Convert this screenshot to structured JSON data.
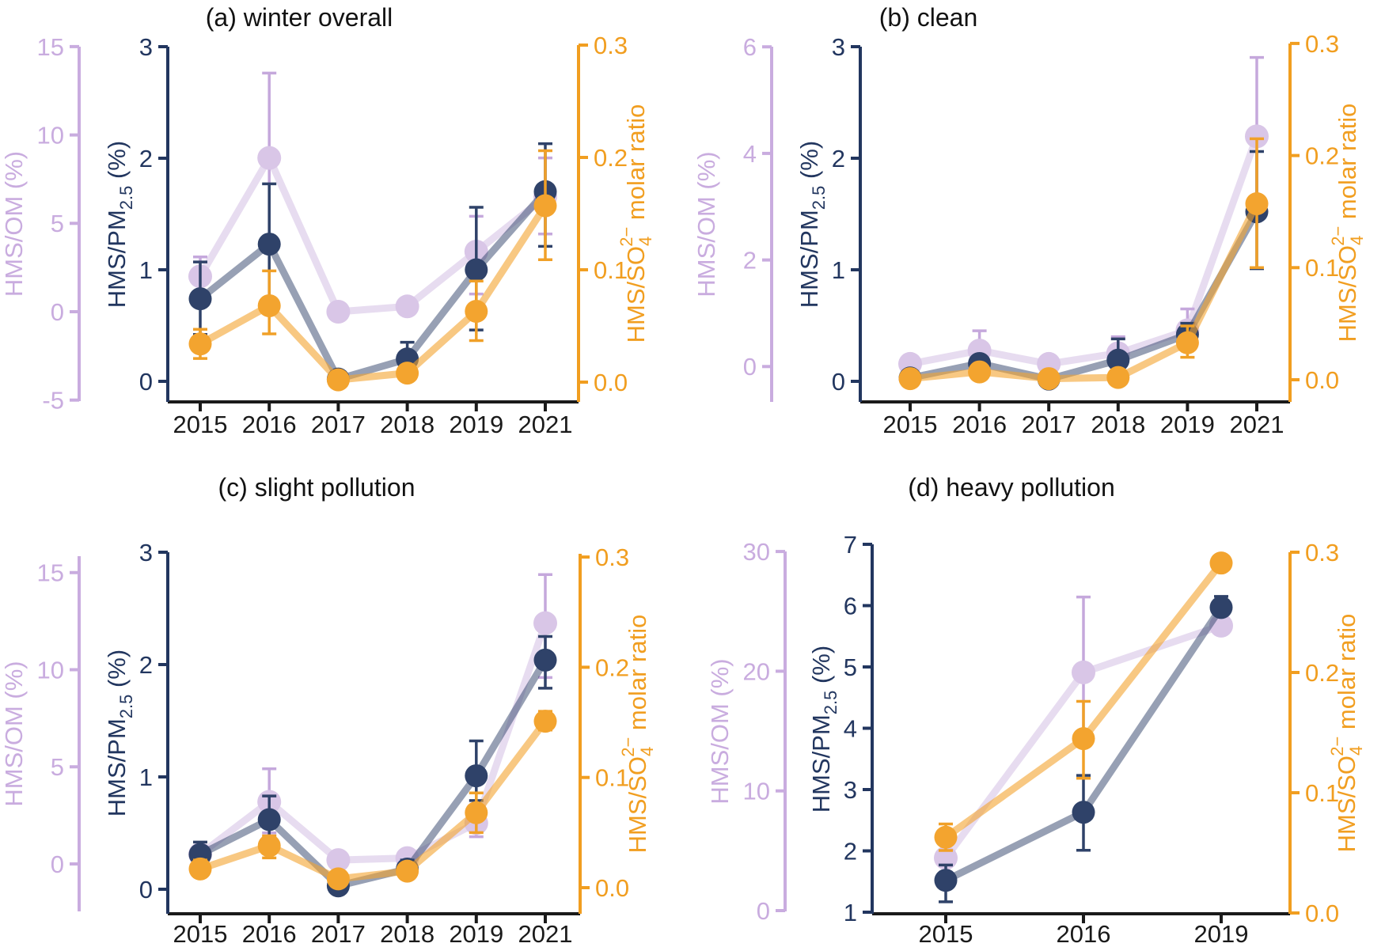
{
  "colors": {
    "om_marker": "#D9C6E7",
    "om_line": "rgba(217,198,231,0.62)",
    "om_error": "#C5A8DC",
    "om_axis": "#C9ACDF",
    "pm_marker": "#2F4269",
    "pm_line": "rgba(47,66,105,0.5)",
    "pm_error": "#2F4269",
    "pm_axis": "#22365F",
    "so4_marker": "#F3A42F",
    "so4_line": "rgba(243,164,47,0.6)",
    "so4_error": "#F0A028",
    "so4_axis": "#F19E20",
    "x_axis": "#1A1A1A",
    "title": "#121212"
  },
  "chart_data": [
    {
      "id": "a",
      "type": "line",
      "title": "(a) winter overall",
      "x": [
        "2015",
        "2016",
        "2017",
        "2018",
        "2019",
        "2021"
      ],
      "axes": {
        "om": {
          "label": "HMS/OM (%)",
          "label_parts": [
            {
              "t": "HMS/OM (%)"
            }
          ],
          "ticks": [
            "15",
            "10",
            "5",
            "0",
            "-5"
          ],
          "range": [
            -5,
            15
          ],
          "side": "left-outer"
        },
        "pm": {
          "label": "HMS/PM2.5 (%)",
          "label_parts": [
            {
              "t": "HMS/PM"
            },
            {
              "t": "2.5",
              "script": "sub"
            },
            {
              "t": " (%)"
            }
          ],
          "ticks": [
            "3",
            "2",
            "1",
            "0"
          ],
          "range": [
            0,
            3
          ],
          "side": "left-inner"
        },
        "so4": {
          "label": "HMS/SO4(2-) molar ratio",
          "label_parts": [
            {
              "t": "HMS/SO"
            },
            {
              "t": "4",
              "script": "sub"
            },
            {
              "t": "2−",
              "script": "sup-stack"
            },
            {
              "t": " molar ratio"
            }
          ],
          "ticks": [
            "0.3",
            "0.2",
            "0.1",
            "0.0"
          ],
          "range": [
            0,
            0.3
          ],
          "side": "right"
        }
      },
      "series": {
        "om": {
          "name": "HMS/OM (%)",
          "values": [
            2.0,
            8.7,
            0.0,
            0.3,
            3.4,
            6.5
          ],
          "err_lo": [
            0.9,
            3.9,
            0.0,
            -0.1,
            1.0,
            4.4
          ],
          "err_hi": [
            3.1,
            13.5,
            0.0,
            0.7,
            5.4,
            8.7
          ]
        },
        "pm": {
          "name": "HMS/PM2.5 (%)",
          "values": [
            0.74,
            1.23,
            0.02,
            0.2,
            1.0,
            1.7
          ],
          "err_lo": [
            0.42,
            0.7,
            0.02,
            0.05,
            0.46,
            1.21
          ],
          "err_hi": [
            1.07,
            1.77,
            0.02,
            0.35,
            1.56,
            2.13
          ]
        },
        "so4": {
          "name": "HMS/SO4(2-) molar ratio",
          "values": [
            0.034,
            0.068,
            0.002,
            0.008,
            0.063,
            0.157
          ],
          "err_lo": [
            0.021,
            0.043,
            0.002,
            0.002,
            0.037,
            0.109
          ],
          "err_hi": [
            0.047,
            0.099,
            0.002,
            0.015,
            0.09,
            0.206
          ]
        }
      }
    },
    {
      "id": "b",
      "type": "line",
      "title": "(b) clean",
      "x": [
        "2015",
        "2016",
        "2017",
        "2018",
        "2019",
        "2021"
      ],
      "axes": {
        "om": {
          "label": "HMS/OM (%)",
          "label_parts": [
            {
              "t": "HMS/OM (%)"
            }
          ],
          "ticks": [
            "6",
            "4",
            "2",
            "0"
          ],
          "range": [
            0,
            6
          ],
          "side": "left-outer"
        },
        "pm": {
          "label": "HMS/PM2.5 (%)",
          "label_parts": [
            {
              "t": "HMS/PM"
            },
            {
              "t": "2.5",
              "script": "sub"
            },
            {
              "t": " (%)"
            }
          ],
          "ticks": [
            "3",
            "2",
            "1",
            "0"
          ],
          "range": [
            0,
            3
          ],
          "side": "left-inner"
        },
        "so4": {
          "label": "HMS/SO4(2-) molar ratio",
          "label_parts": [
            {
              "t": "HMS/SO"
            },
            {
              "t": "4",
              "script": "sub"
            },
            {
              "t": "2−",
              "script": "sup-stack"
            },
            {
              "t": " molar ratio"
            }
          ],
          "ticks": [
            "0.3",
            "0.2",
            "0.1",
            "0.0"
          ],
          "range": [
            0,
            0.3
          ],
          "side": "right"
        }
      },
      "series": {
        "om": {
          "name": "HMS/OM (%)",
          "values": [
            0.05,
            0.3,
            0.05,
            0.25,
            0.68,
            4.32
          ],
          "err_lo": [
            0.05,
            0.05,
            0.05,
            0.02,
            0.35,
            2.9
          ],
          "err_hi": [
            0.05,
            0.67,
            0.05,
            0.56,
            1.08,
            5.8
          ]
        },
        "pm": {
          "name": "HMS/PM2.5 (%)",
          "values": [
            0.03,
            0.16,
            0.02,
            0.19,
            0.42,
            1.52
          ],
          "err_lo": [
            0.03,
            0.16,
            0.02,
            0.04,
            0.3,
            1.01
          ],
          "err_hi": [
            0.03,
            0.16,
            0.02,
            0.38,
            0.52,
            2.06
          ]
        },
        "so4": {
          "name": "HMS/SO4(2-) molar ratio",
          "values": [
            0.001,
            0.007,
            0.001,
            0.002,
            0.033,
            0.157
          ],
          "err_lo": [
            0.001,
            0.007,
            0.001,
            0.002,
            0.02,
            0.1
          ],
          "err_hi": [
            0.001,
            0.007,
            0.001,
            0.002,
            0.048,
            0.215
          ]
        }
      }
    },
    {
      "id": "c",
      "type": "line",
      "title": "(c) slight pollution",
      "x": [
        "2015",
        "2016",
        "2017",
        "2018",
        "2019",
        "2021"
      ],
      "axes": {
        "om": {
          "label": "HMS/OM (%)",
          "label_parts": [
            {
              "t": "HMS/OM (%)"
            }
          ],
          "ticks": [
            "15",
            "10",
            "5",
            "0"
          ],
          "range": [
            0,
            15
          ],
          "side": "left-outer"
        },
        "pm": {
          "label": "HMS/PM2.5 (%)",
          "label_parts": [
            {
              "t": "HMS/PM"
            },
            {
              "t": "2.5",
              "script": "sub"
            },
            {
              "t": " (%)"
            }
          ],
          "ticks": [
            "3",
            "2",
            "1",
            "0"
          ],
          "range": [
            0,
            3
          ],
          "side": "left-inner"
        },
        "so4": {
          "label": "HMS/SO4(2-) molar ratio",
          "label_parts": [
            {
              "t": "HMS/SO"
            },
            {
              "t": "4",
              "script": "sub"
            },
            {
              "t": "2−",
              "script": "sup-stack"
            },
            {
              "t": " molar ratio"
            }
          ],
          "ticks": [
            "0.3",
            "0.2",
            "0.1",
            "0.0"
          ],
          "range": [
            0,
            0.3
          ],
          "side": "right"
        }
      },
      "series": {
        "om": {
          "name": "HMS/OM (%)",
          "values": [
            0.5,
            3.2,
            0.2,
            0.3,
            2.1,
            12.4
          ],
          "err_lo": [
            0.5,
            1.6,
            0.2,
            0.3,
            1.4,
            9.6
          ],
          "err_hi": [
            0.5,
            4.9,
            0.2,
            0.3,
            2.8,
            14.9
          ]
        },
        "pm": {
          "name": "HMS/PM2.5 (%)",
          "values": [
            0.31,
            0.62,
            0.03,
            0.18,
            1.01,
            2.04
          ],
          "err_lo": [
            0.2,
            0.44,
            0.03,
            0.12,
            0.79,
            1.79
          ],
          "err_hi": [
            0.42,
            0.83,
            0.03,
            0.26,
            1.32,
            2.25
          ]
        },
        "so4": {
          "name": "HMS/SO4(2-) molar ratio",
          "values": [
            0.017,
            0.038,
            0.008,
            0.015,
            0.068,
            0.151
          ],
          "err_lo": [
            0.01,
            0.027,
            0.008,
            0.015,
            0.05,
            0.143
          ],
          "err_hi": [
            0.025,
            0.047,
            0.008,
            0.015,
            0.086,
            0.16
          ]
        }
      }
    },
    {
      "id": "d",
      "type": "line",
      "title": "(d) heavy pollution",
      "x": [
        "2015",
        "2016",
        "2019"
      ],
      "axes": {
        "om": {
          "label": "HMS/OM (%)",
          "label_parts": [
            {
              "t": "HMS/OM (%)"
            }
          ],
          "ticks": [
            "30",
            "20",
            "10",
            "0"
          ],
          "range": [
            0,
            30
          ],
          "side": "left-outer"
        },
        "pm": {
          "label": "HMS/PM2.5 (%)",
          "label_parts": [
            {
              "t": "HMS/PM"
            },
            {
              "t": "2.5",
              "script": "sub"
            },
            {
              "t": " (%)"
            }
          ],
          "ticks": [
            "7",
            "6",
            "5",
            "4",
            "3",
            "2",
            "1"
          ],
          "range": [
            1,
            7
          ],
          "side": "left-inner"
        },
        "so4": {
          "label": "HMS/SO4(2-) molar ratio",
          "label_parts": [
            {
              "t": "HMS/SO"
            },
            {
              "t": "4",
              "script": "sub"
            },
            {
              "t": "2−",
              "script": "sup-stack"
            },
            {
              "t": " molar ratio"
            }
          ],
          "ticks": [
            "0.3",
            "0.2",
            "0.1",
            "0.0"
          ],
          "range": [
            0,
            0.3
          ],
          "side": "right"
        }
      },
      "series": {
        "om": {
          "name": "HMS/OM (%)",
          "values": [
            4.4,
            19.9,
            23.8
          ],
          "err_lo": [
            3.2,
            14.0,
            23.2
          ],
          "err_hi": [
            5.5,
            26.2,
            24.5
          ]
        },
        "pm": {
          "name": "HMS/PM2.5 (%)",
          "values": [
            1.52,
            2.63,
            5.97
          ],
          "err_lo": [
            1.17,
            2.01,
            5.85
          ],
          "err_hi": [
            1.77,
            3.23,
            6.15
          ]
        },
        "so4": {
          "name": "HMS/SO4(2-) molar ratio",
          "values": [
            0.063,
            0.145,
            0.291
          ],
          "err_lo": [
            0.052,
            0.112,
            0.291
          ],
          "err_hi": [
            0.074,
            0.176,
            0.291
          ]
        }
      }
    }
  ]
}
